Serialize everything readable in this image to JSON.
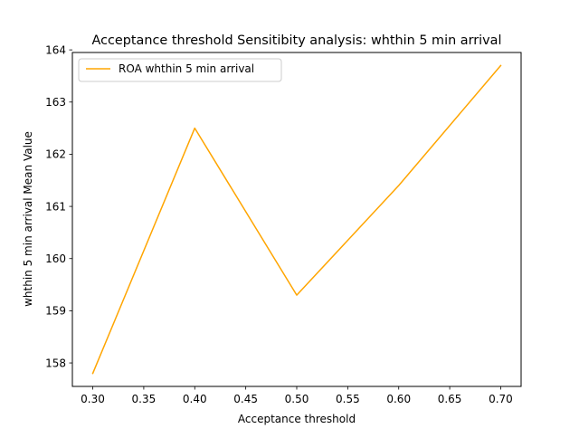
{
  "chart_data": {
    "type": "line",
    "title": "Acceptance threshold Sensitibity analysis: whthin 5 min arrival",
    "xlabel": "Acceptance threshold",
    "ylabel": "whthin 5 min arrival Mean Value",
    "x": [
      0.3,
      0.4,
      0.5,
      0.6,
      0.7
    ],
    "series": [
      {
        "name": "ROA whthin 5 min arrival",
        "color": "#ffa500",
        "values": [
          157.8,
          162.5,
          159.3,
          161.4,
          163.7
        ]
      }
    ],
    "xlim": [
      0.28,
      0.72
    ],
    "ylim": [
      157.55,
      163.95
    ],
    "xticks": [
      0.3,
      0.35,
      0.4,
      0.45,
      0.5,
      0.55,
      0.6,
      0.65,
      0.7
    ],
    "xtick_labels": [
      "0.30",
      "0.35",
      "0.40",
      "0.45",
      "0.50",
      "0.55",
      "0.60",
      "0.65",
      "0.70"
    ],
    "yticks": [
      158,
      159,
      160,
      161,
      162,
      163,
      164
    ],
    "ytick_labels": [
      "158",
      "159",
      "160",
      "161",
      "162",
      "163",
      "164"
    ],
    "grid": false,
    "legend_position": "top-left"
  }
}
